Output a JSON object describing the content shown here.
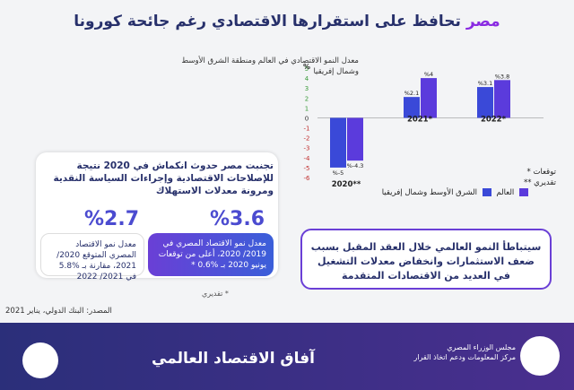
{
  "header": {
    "title_accent": "مصر",
    "title_rest": "تحافظ على استقرارها الاقتصادي رغم جائحة كورونا"
  },
  "chart_data": {
    "type": "bar",
    "title": "معدل النمو الاقتصادي في العالم ومنطقة الشرق الأوسط وشمال إفريقيا",
    "ylabel": "%",
    "ylim": [
      -6,
      5
    ],
    "yticks": [
      "5",
      "4",
      "3",
      "2",
      "1",
      "0",
      "-1",
      "-2",
      "-3",
      "-4",
      "-5",
      "-6"
    ],
    "categories": [
      "2020**",
      "2021*",
      "2022*"
    ],
    "series": [
      {
        "name": "العالم",
        "values": [
          -4.3,
          4.0,
          3.8
        ],
        "labels": [
          "%-4.3",
          "%4",
          "%3.8"
        ],
        "color": "#5b3bdc"
      },
      {
        "name": "الشرق الأوسط وشمال إفريقيا",
        "values": [
          -5.0,
          2.1,
          3.1
        ],
        "labels": [
          "%-5",
          "%2.1",
          "%3.1"
        ],
        "color": "#3a49d8"
      }
    ]
  },
  "notes": {
    "forecast": "توقعات *",
    "estimate": "تقديري **"
  },
  "egypt_panel": {
    "headline": "تجنبت مصر حدوث انكماش في 2020 نتيجة للإصلاحات الاقتصادية وإجراءات السياسة النقدية ومرونة معدلات الاستهلاك",
    "stat_a": {
      "value": "%3.6",
      "text": "معدل نمو الاقتصاد المصري في 2019/ 2020، أعلى من توقعات يونيو 2020 بـ %0.6 *"
    },
    "stat_b": {
      "value": "%2.7",
      "text": "معدل نمو الاقتصاد المصري المتوقع 2020/ 2021، مقارنة بـ %5.8 في 2021/ 2022"
    },
    "estimate_note": "* تقديري"
  },
  "outlook": {
    "text": "سيتباطأ النمو العالمي خلال العقد المقبل بسبب ضعف الاستثمارات وانخفاض معدلات التشغيل في العديد من الاقتصادات المتقدمة"
  },
  "source": "المصدر: البنك الدولي، يناير 2021",
  "footer": {
    "title": "آفاق الاقتصاد العالمي",
    "org_line1": "مجلس الوزراء المصري",
    "org_line2": "مركز المعلومات ودعم اتخاذ القرار"
  },
  "colors": {
    "navy": "#27306b",
    "purple": "#5b3bdc",
    "blue": "#3a49d8"
  }
}
